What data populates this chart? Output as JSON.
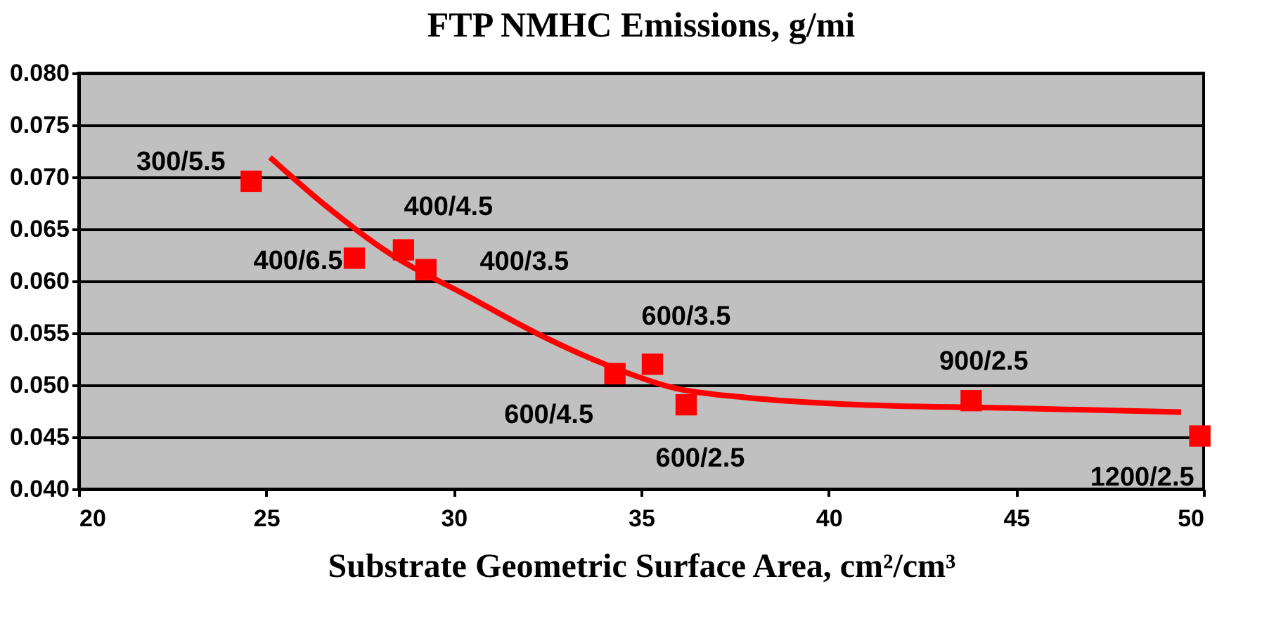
{
  "chart_data": {
    "type": "scatter",
    "title": "FTP NMHC Emissions, g/mi",
    "xlabel": "Substrate Geometric Surface Area, cm²/cm³",
    "xlim": [
      20,
      50
    ],
    "xticks": [
      20,
      25,
      30,
      35,
      40,
      45,
      50
    ],
    "ylim": [
      0.04,
      0.08
    ],
    "yticks": [
      {
        "value": 0.04,
        "label": "0.040"
      },
      0.045,
      {
        "value": 0.05,
        "label": "0.050"
      },
      0.055,
      {
        "value": 0.06,
        "label": "0.060"
      },
      0.065,
      {
        "value": 0.07,
        "label": "0.070"
      },
      0.075,
      {
        "value": 0.08,
        "label": "0.080"
      }
    ],
    "grid": "y",
    "series": [
      {
        "marker": "square",
        "color": "#ff0000",
        "x": [
          24.6,
          27.35,
          28.66,
          29.26,
          34.3,
          35.3,
          36.2,
          43.8,
          49.9
        ],
        "values": [
          0.0696,
          0.0622,
          0.063,
          0.0611,
          0.0511,
          0.052,
          0.0481,
          0.0485,
          0.0451
        ]
      },
      {
        "type": "line",
        "marker": "none",
        "line_style": "solid",
        "color": "#ff0000",
        "x": [
          25.1,
          26.6,
          28.4,
          30.3,
          32.2,
          34.1,
          35.9,
          37.8,
          40.8,
          44.6,
          49.4
        ],
        "values": [
          0.0719,
          0.0672,
          0.0624,
          0.0587,
          0.055,
          0.0519,
          0.0497,
          0.0488,
          0.0481,
          0.0478,
          0.0474
        ]
      }
    ],
    "annotations": [
      {
        "text": "300/5.5",
        "x": 24.6,
        "y": 0.0696
      },
      {
        "text": "400/6.5",
        "x": 27.35,
        "y": 0.0622
      },
      {
        "text": "400/4.5",
        "x": 28.66,
        "y": 0.063
      },
      {
        "text": "400/3.5",
        "x": 29.26,
        "y": 0.0611
      },
      {
        "text": "600/4.5",
        "x": 34.3,
        "y": 0.0511
      },
      {
        "text": "600/3.5",
        "x": 35.3,
        "y": 0.052
      },
      {
        "text": "600/2.5",
        "x": 36.2,
        "y": 0.0481
      },
      {
        "text": "900/2.5",
        "x": 43.8,
        "y": 0.0485
      },
      {
        "text": "1200/2.5",
        "x": 49.9,
        "y": 0.0451
      }
    ]
  }
}
